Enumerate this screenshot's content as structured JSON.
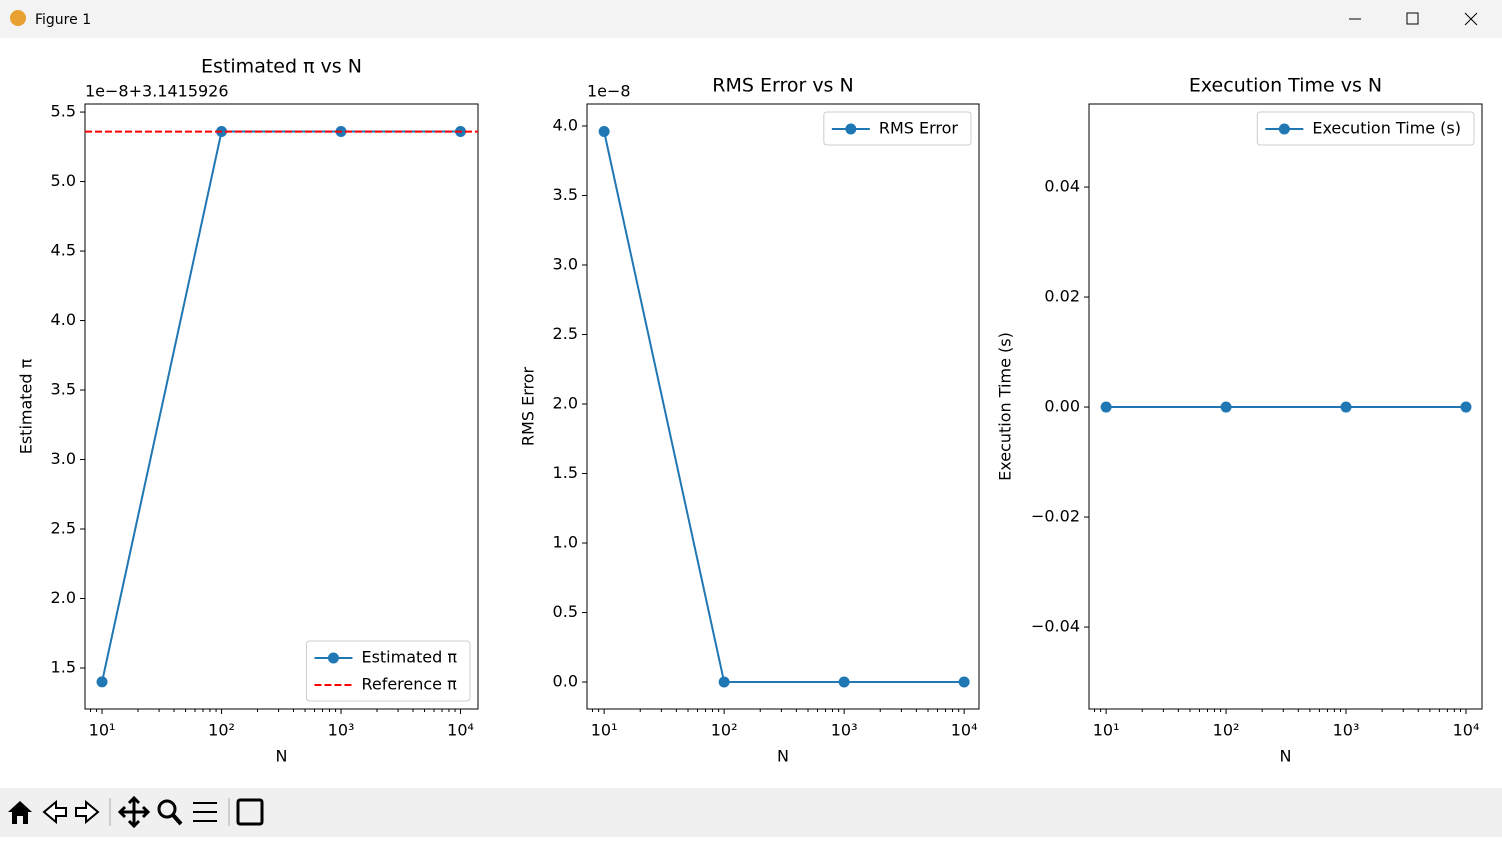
{
  "window": {
    "title": "Figure 1"
  },
  "chart_data": [
    {
      "type": "line",
      "title": "Estimated π vs N",
      "x_label": "N",
      "y_label": "Estimated π",
      "offset_text": "1e−8+3.1415926",
      "x": [
        10,
        100,
        1000,
        10000
      ],
      "xscale": "log",
      "xlim": [
        7.2,
        14000
      ],
      "xticks": [
        {
          "value": 10,
          "label": "10¹"
        },
        {
          "value": 100,
          "label": "10²"
        },
        {
          "value": 1000,
          "label": "10³"
        },
        {
          "value": 10000,
          "label": "10⁴"
        }
      ],
      "ylim": [
        1.205,
        5.558
      ],
      "yticks": [
        1.5,
        {
          "value": 2,
          "label": "2.0"
        },
        2.5,
        {
          "value": 3,
          "label": "3.0"
        },
        3.5,
        {
          "value": 4,
          "label": "4.0"
        },
        4.5,
        {
          "value": 5,
          "label": "5.0"
        },
        5.5
      ],
      "series": [
        {
          "name": "Estimated π",
          "color": "#1f77b4",
          "values": [
            1.4,
            5.36,
            5.36,
            5.36
          ]
        }
      ],
      "hlines": [
        {
          "name": "Reference π",
          "color": "#ff0000",
          "value": 5.359
        }
      ],
      "legend": "lower right"
    },
    {
      "type": "line",
      "title": "RMS Error vs N",
      "x_label": "N",
      "y_label": "RMS Error",
      "offset_text": "1e−8",
      "x": [
        10,
        100,
        1000,
        10000
      ],
      "xscale": "log",
      "xlim": [
        7.2,
        13300
      ],
      "xticks": [
        {
          "value": 10,
          "label": "10¹"
        },
        {
          "value": 100,
          "label": "10²"
        },
        {
          "value": 1000,
          "label": "10³"
        },
        {
          "value": 10000,
          "label": "10⁴"
        }
      ],
      "ylim": [
        -0.194,
        4.158
      ],
      "yticks": [
        {
          "value": 0,
          "label": "0.0"
        },
        0.5,
        {
          "value": 1,
          "label": "1.0"
        },
        1.5,
        {
          "value": 2,
          "label": "2.0"
        },
        2.5,
        {
          "value": 3,
          "label": "3.0"
        },
        3.5,
        {
          "value": 4,
          "label": "4.0"
        }
      ],
      "series": [
        {
          "name": "RMS Error",
          "color": "#1f77b4",
          "values": [
            3.96,
            0,
            0,
            0
          ]
        }
      ],
      "legend": "upper right"
    },
    {
      "type": "line",
      "title": "Execution Time vs N",
      "x_label": "N",
      "y_label": "Execution Time (s)",
      "x": [
        10,
        100,
        1000,
        10000
      ],
      "xscale": "log",
      "xlim": [
        7.2,
        13600
      ],
      "xticks": [
        {
          "value": 10,
          "label": "10¹"
        },
        {
          "value": 100,
          "label": "10²"
        },
        {
          "value": 1000,
          "label": "10³"
        },
        {
          "value": 10000,
          "label": "10⁴"
        }
      ],
      "ylim": [
        -0.0549,
        0.0551
      ],
      "yticks": [
        {
          "value": -0.04,
          "label": "−0.04"
        },
        {
          "value": -0.02,
          "label": "−0.02"
        },
        {
          "value": 0,
          "label": "0.00"
        },
        0.02,
        0.04
      ],
      "series": [
        {
          "name": "Execution Time (s)",
          "color": "#1f77b4",
          "values": [
            0,
            0,
            0,
            0
          ]
        }
      ],
      "legend": "upper right"
    }
  ]
}
